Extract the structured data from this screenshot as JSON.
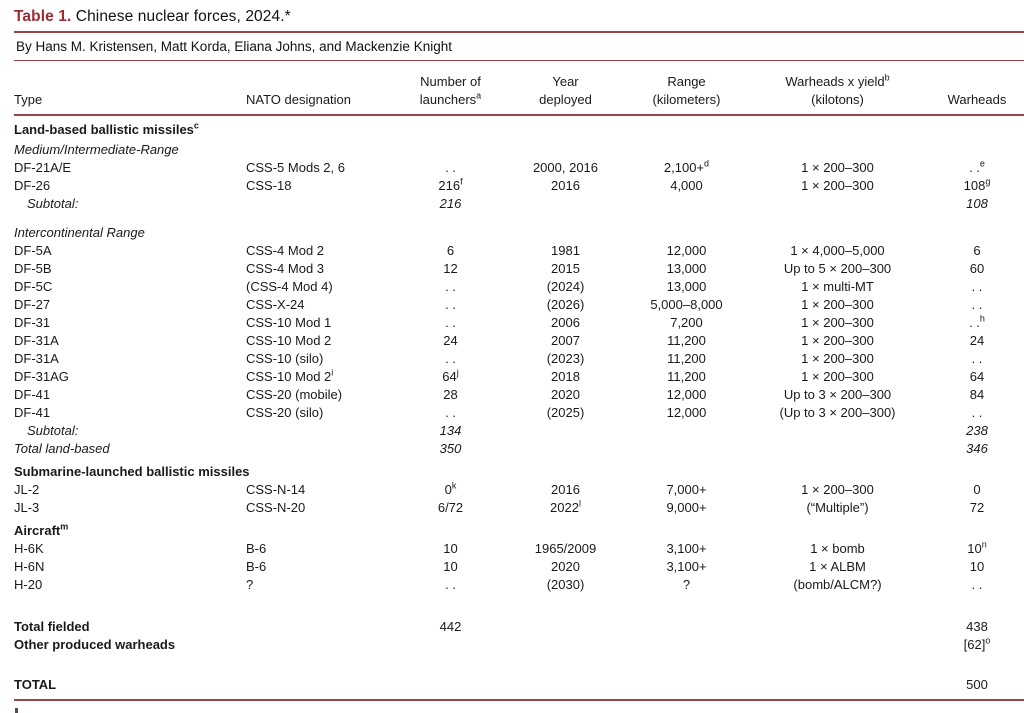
{
  "accent_color": "#9a434b",
  "title_color": "#9c2b35",
  "title": {
    "label": "Table 1.",
    "text": " Chinese nuclear forces, 2024.*"
  },
  "byline": "By Hans M. Kristensen, Matt Korda, Eliana Johns, and Mackenzie Knight",
  "table": {
    "columns": [
      {
        "key": "type",
        "lines": [
          "Type"
        ]
      },
      {
        "key": "nato",
        "lines": [
          "NATO designation"
        ]
      },
      {
        "key": "launchers",
        "lines": [
          "Number of",
          "launchers^a"
        ]
      },
      {
        "key": "year",
        "lines": [
          "Year",
          "deployed"
        ]
      },
      {
        "key": "range",
        "lines": [
          "Range",
          "(kilometers)"
        ]
      },
      {
        "key": "yield",
        "lines": [
          "Warheads x yield^b",
          "(kilotons)"
        ]
      },
      {
        "key": "warheads",
        "lines": [
          "Warheads"
        ]
      }
    ],
    "rows": [
      {
        "kind": "section",
        "name": "section-land-based",
        "cells": [
          "Land-based ballistic missiles^c",
          "",
          "",
          "",
          "",
          "",
          ""
        ]
      },
      {
        "kind": "subsection",
        "name": "subsection-medium-intermediate",
        "cells": [
          "Medium/Intermediate-Range",
          "",
          "",
          "",
          "",
          "",
          ""
        ]
      },
      {
        "kind": "data",
        "cells": [
          "DF-21A/E",
          "CSS-5 Mods 2, 6",
          ". .",
          "2000, 2016",
          "2,100+^d",
          "1 × 200–300",
          ". .^e"
        ]
      },
      {
        "kind": "data",
        "cells": [
          "DF-26",
          "CSS-18",
          "216^f",
          "2016",
          "4,000",
          "1 × 200–300",
          "108^g"
        ]
      },
      {
        "kind": "subtotal",
        "cells": [
          "Subtotal:",
          "",
          "216",
          "",
          "",
          "",
          "108"
        ]
      },
      {
        "kind": "spacer",
        "h": 9
      },
      {
        "kind": "subsection",
        "name": "subsection-intercontinental",
        "cells": [
          "Intercontinental Range",
          "",
          "",
          "",
          "",
          "",
          ""
        ]
      },
      {
        "kind": "data",
        "cells": [
          "DF-5A",
          "CSS-4 Mod 2",
          "6",
          "1981",
          "12,000",
          "1 × 4,000–5,000",
          "6"
        ]
      },
      {
        "kind": "data",
        "cells": [
          "DF-5B",
          "CSS-4 Mod 3",
          "12",
          "2015",
          "13,000",
          "Up to 5 × 200–300",
          "60"
        ]
      },
      {
        "kind": "data",
        "cells": [
          "DF-5C",
          "(CSS-4 Mod 4)",
          ". .",
          "(2024)",
          "13,000",
          "1 × multi-MT",
          ". ."
        ]
      },
      {
        "kind": "data",
        "cells": [
          "DF-27",
          "CSS-X-24",
          ". .",
          "(2026)",
          "5,000–8,000",
          "1 × 200–300",
          ". ."
        ]
      },
      {
        "kind": "data",
        "cells": [
          "DF-31",
          "CSS-10 Mod 1",
          ". .",
          "2006",
          "7,200",
          "1 × 200–300",
          ". .^h"
        ]
      },
      {
        "kind": "data",
        "cells": [
          "DF-31A",
          "CSS-10 Mod 2",
          "24",
          "2007",
          "11,200",
          "1 × 200–300",
          "24"
        ]
      },
      {
        "kind": "data",
        "cells": [
          "DF-31A",
          "CSS-10 (silo)",
          ". .",
          "(2023)",
          "11,200",
          "1 × 200–300",
          ". ."
        ]
      },
      {
        "kind": "data",
        "cells": [
          "DF-31AG",
          "CSS-10 Mod 2^i",
          "64^j",
          "2018",
          "11,200",
          "1 × 200–300",
          "64"
        ]
      },
      {
        "kind": "data",
        "cells": [
          "DF-41",
          "CSS-20 (mobile)",
          "28",
          "2020",
          "12,000",
          "Up to 3 × 200–300",
          "84"
        ]
      },
      {
        "kind": "data",
        "cells": [
          "DF-41",
          "CSS-20 (silo)",
          ". .",
          "(2025)",
          "12,000",
          "(Up to 3 × 200–300)",
          ". ."
        ]
      },
      {
        "kind": "subtotal",
        "cells": [
          "Subtotal:",
          "",
          "134",
          "",
          "",
          "",
          "238"
        ]
      },
      {
        "kind": "totalitalic",
        "name": "row-total-land-based",
        "cells": [
          "Total land-based",
          "",
          "350",
          "",
          "",
          "",
          "346"
        ]
      },
      {
        "kind": "section",
        "name": "section-slbm",
        "cells": [
          "Submarine-launched ballistic missiles",
          "",
          "",
          "",
          "",
          "",
          ""
        ]
      },
      {
        "kind": "data",
        "cells": [
          "JL-2",
          "CSS-N-14",
          "0^k",
          "2016",
          "7,000+",
          "1 × 200–300",
          "0"
        ]
      },
      {
        "kind": "data",
        "cells": [
          "JL-3",
          "CSS-N-20",
          "6/72",
          "2022^l",
          "9,000+",
          "(“Multiple”)",
          "72"
        ]
      },
      {
        "kind": "section",
        "name": "section-aircraft",
        "cells": [
          "Aircraft^m",
          "",
          "",
          "",
          "",
          "",
          ""
        ]
      },
      {
        "kind": "data",
        "cells": [
          "H-6K",
          "B-6",
          "10",
          "1965/2009",
          "3,100+",
          "1 × bomb",
          "10^n"
        ]
      },
      {
        "kind": "data",
        "cells": [
          "H-6N",
          "B-6",
          "10",
          "2020",
          "3,100+",
          "1 × ALBM",
          "10"
        ]
      },
      {
        "kind": "data",
        "cells": [
          "H-20",
          "?",
          ". .",
          "(2030)",
          "?",
          "(bomb/ALCM?)",
          ". ."
        ]
      },
      {
        "kind": "spacer",
        "h": 24
      },
      {
        "kind": "totalbold",
        "name": "row-total-fielded",
        "cells": [
          "Total fielded",
          "",
          "442",
          "",
          "",
          "",
          "438"
        ]
      },
      {
        "kind": "totalbold",
        "name": "row-other-produced",
        "cells": [
          "Other produced warheads",
          "",
          "",
          "",
          "",
          "",
          "[62]^o"
        ]
      },
      {
        "kind": "spacer",
        "h": 22
      },
      {
        "kind": "totalbold",
        "name": "row-grand-total",
        "cells": [
          "TOTAL",
          "",
          "",
          "",
          "",
          "",
          "500"
        ]
      }
    ]
  }
}
